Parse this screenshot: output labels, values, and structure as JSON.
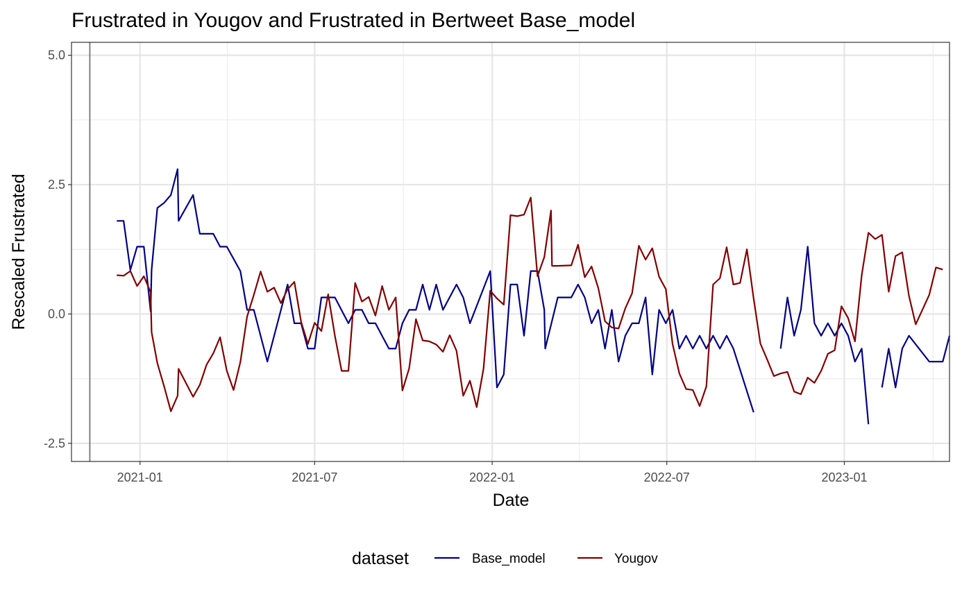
{
  "chart_data": {
    "type": "line",
    "title": "Frustrated  in Yougov and  Frustrated  in Bertweet  Base_model",
    "xlabel": "Date",
    "ylabel": "Rescaled  Frustrated",
    "x_ticks": [
      "2021-01",
      "2021-07",
      "2022-01",
      "2022-07",
      "2023-01"
    ],
    "y_ticks": [
      "-2.5",
      "0.0",
      "2.5",
      "5.0"
    ],
    "xlim": [
      "2020-10-22",
      "2023-04-20"
    ],
    "ylim": [
      -2.85,
      5.25
    ],
    "grid": true,
    "vline_x": "2020-11-10",
    "legend": {
      "title": "dataset",
      "position": "bottom"
    },
    "series": [
      {
        "name": "Base_model",
        "color": "#00007f",
        "points": [
          [
            "2020-12-08",
            1.8
          ],
          [
            "2020-12-15",
            1.8
          ],
          [
            "2020-12-22",
            0.85
          ],
          [
            "2020-12-29",
            1.3
          ],
          [
            "2021-01-05",
            1.3
          ],
          [
            "2021-01-12",
            0.05
          ],
          [
            "2021-01-13",
            0.85
          ],
          [
            "2021-01-19",
            2.05
          ],
          [
            "2021-01-26",
            2.15
          ],
          [
            "2021-02-02",
            2.3
          ],
          [
            "2021-02-09",
            2.8
          ],
          [
            "2021-02-10",
            1.8
          ],
          [
            "2021-02-25",
            2.3
          ],
          [
            "2021-03-04",
            1.55
          ],
          [
            "2021-03-18",
            1.55
          ],
          [
            "2021-03-25",
            1.3
          ],
          [
            "2021-04-01",
            1.3
          ],
          [
            "2021-04-15",
            0.83
          ],
          [
            "2021-04-22",
            0.08
          ],
          [
            "2021-04-29",
            0.08
          ],
          [
            "2021-05-13",
            -0.92
          ],
          [
            "2021-06-03",
            0.57
          ],
          [
            "2021-06-10",
            -0.18
          ],
          [
            "2021-06-17",
            -0.18
          ],
          [
            "2021-06-24",
            -0.67
          ],
          [
            "2021-07-01",
            -0.67
          ],
          [
            "2021-07-08",
            0.32
          ],
          [
            "2021-07-15",
            0.32
          ],
          [
            "2021-07-22",
            0.32
          ],
          [
            "2021-08-05",
            -0.18
          ],
          [
            "2021-08-12",
            0.08
          ],
          [
            "2021-08-19",
            0.08
          ],
          [
            "2021-08-26",
            -0.18
          ],
          [
            "2021-09-02",
            -0.18
          ],
          [
            "2021-09-16",
            -0.67
          ],
          [
            "2021-09-23",
            -0.67
          ],
          [
            "2021-09-30",
            -0.18
          ],
          [
            "2021-10-07",
            0.08
          ],
          [
            "2021-10-14",
            0.08
          ],
          [
            "2021-10-21",
            0.57
          ],
          [
            "2021-10-28",
            0.08
          ],
          [
            "2021-11-04",
            0.57
          ],
          [
            "2021-11-11",
            0.08
          ],
          [
            "2021-11-25",
            0.57
          ],
          [
            "2021-12-02",
            0.32
          ],
          [
            "2021-12-09",
            -0.18
          ],
          [
            "2021-12-30",
            0.83
          ],
          [
            "2022-01-06",
            -1.42
          ],
          [
            "2022-01-13",
            -1.17
          ],
          [
            "2022-01-20",
            0.57
          ],
          [
            "2022-01-27",
            0.57
          ],
          [
            "2022-02-03",
            -0.42
          ],
          [
            "2022-02-10",
            0.83
          ],
          [
            "2022-02-17",
            0.83
          ],
          [
            "2022-02-24",
            0.08
          ],
          [
            "2022-02-25",
            -0.67
          ],
          [
            "2022-03-10",
            0.32
          ],
          [
            "2022-03-24",
            0.32
          ],
          [
            "2022-03-31",
            0.57
          ],
          [
            "2022-04-07",
            0.32
          ],
          [
            "2022-04-14",
            -0.18
          ],
          [
            "2022-04-21",
            0.08
          ],
          [
            "2022-04-28",
            -0.67
          ],
          [
            "2022-05-05",
            0.08
          ],
          [
            "2022-05-12",
            -0.92
          ],
          [
            "2022-05-19",
            -0.42
          ],
          [
            "2022-05-26",
            -0.18
          ],
          [
            "2022-06-02",
            -0.18
          ],
          [
            "2022-06-09",
            0.32
          ],
          [
            "2022-06-16",
            -1.17
          ],
          [
            "2022-06-23",
            0.08
          ],
          [
            "2022-06-30",
            -0.18
          ],
          [
            "2022-07-07",
            0.08
          ],
          [
            "2022-07-14",
            -0.67
          ],
          [
            "2022-07-21",
            -0.42
          ],
          [
            "2022-07-28",
            -0.67
          ],
          [
            "2022-08-04",
            -0.42
          ],
          [
            "2022-08-11",
            -0.67
          ],
          [
            "2022-08-18",
            -0.42
          ],
          [
            "2022-08-25",
            -0.67
          ],
          [
            "2022-09-01",
            -0.42
          ],
          [
            "2022-09-08",
            -0.67
          ],
          [
            "2022-09-29",
            -1.9
          ],
          null,
          [
            "2022-10-27",
            -0.67
          ],
          [
            "2022-11-03",
            0.32
          ],
          [
            "2022-11-10",
            -0.42
          ],
          [
            "2022-11-17",
            0.08
          ],
          [
            "2022-11-24",
            1.3
          ],
          [
            "2022-12-01",
            -0.18
          ],
          [
            "2022-12-08",
            -0.42
          ],
          [
            "2022-12-15",
            -0.18
          ],
          [
            "2022-12-22",
            -0.42
          ],
          [
            "2022-12-29",
            -0.18
          ],
          [
            "2023-01-05",
            -0.42
          ],
          [
            "2023-01-12",
            -0.92
          ],
          [
            "2023-01-19",
            -0.67
          ],
          [
            "2023-01-26",
            -2.13
          ],
          null,
          [
            "2023-02-09",
            -1.42
          ],
          [
            "2023-02-16",
            -0.67
          ],
          [
            "2023-02-23",
            -1.42
          ],
          [
            "2023-03-02",
            -0.67
          ],
          [
            "2023-03-09",
            -0.42
          ],
          [
            "2023-03-30",
            -0.92
          ],
          [
            "2023-04-06",
            -0.92
          ],
          [
            "2023-04-13",
            -0.92
          ],
          [
            "2023-04-20",
            -0.42
          ]
        ]
      },
      {
        "name": "Yougov",
        "color": "#7f0000",
        "points": [
          [
            "2020-12-08",
            0.75
          ],
          [
            "2020-12-15",
            0.74
          ],
          [
            "2020-12-22",
            0.83
          ],
          [
            "2020-12-29",
            0.54
          ],
          [
            "2021-01-05",
            0.73
          ],
          [
            "2021-01-12",
            0.42
          ],
          [
            "2021-01-13",
            -0.35
          ],
          [
            "2021-01-19",
            -0.95
          ],
          [
            "2021-01-26",
            -1.4
          ],
          [
            "2021-02-02",
            -1.88
          ],
          [
            "2021-02-09",
            -1.58
          ],
          [
            "2021-02-10",
            -1.06
          ],
          [
            "2021-02-25",
            -1.6
          ],
          [
            "2021-03-04",
            -1.37
          ],
          [
            "2021-03-11",
            -0.98
          ],
          [
            "2021-03-18",
            -0.76
          ],
          [
            "2021-03-25",
            -0.45
          ],
          [
            "2021-04-01",
            -1.1
          ],
          [
            "2021-04-08",
            -1.47
          ],
          [
            "2021-04-15",
            -0.93
          ],
          [
            "2021-04-22",
            -0.05
          ],
          [
            "2021-04-29",
            0.37
          ],
          [
            "2021-05-06",
            0.82
          ],
          [
            "2021-05-13",
            0.43
          ],
          [
            "2021-05-20",
            0.51
          ],
          [
            "2021-05-27",
            0.21
          ],
          [
            "2021-06-03",
            0.48
          ],
          [
            "2021-06-10",
            0.62
          ],
          [
            "2021-06-17",
            -0.15
          ],
          [
            "2021-06-24",
            -0.58
          ],
          [
            "2021-07-01",
            -0.17
          ],
          [
            "2021-07-08",
            -0.33
          ],
          [
            "2021-07-15",
            0.38
          ],
          [
            "2021-07-22",
            -0.42
          ],
          [
            "2021-07-29",
            -1.1
          ],
          [
            "2021-08-05",
            -1.1
          ],
          [
            "2021-08-12",
            0.6
          ],
          [
            "2021-08-19",
            0.24
          ],
          [
            "2021-08-26",
            0.33
          ],
          [
            "2021-09-02",
            -0.03
          ],
          [
            "2021-09-09",
            0.54
          ],
          [
            "2021-09-16",
            0.08
          ],
          [
            "2021-09-23",
            0.32
          ],
          [
            "2021-09-30",
            -1.48
          ],
          [
            "2021-10-07",
            -1.05
          ],
          [
            "2021-10-14",
            -0.1
          ],
          [
            "2021-10-21",
            -0.51
          ],
          [
            "2021-10-28",
            -0.53
          ],
          [
            "2021-11-04",
            -0.59
          ],
          [
            "2021-11-11",
            -0.73
          ],
          [
            "2021-11-18",
            -0.41
          ],
          [
            "2021-11-25",
            -0.71
          ],
          [
            "2021-12-02",
            -1.58
          ],
          [
            "2021-12-09",
            -1.29
          ],
          [
            "2021-12-16",
            -1.8
          ],
          [
            "2021-12-23",
            -1.06
          ],
          [
            "2021-12-30",
            0.45
          ],
          [
            "2022-01-06",
            0.3
          ],
          [
            "2022-01-13",
            0.18
          ],
          [
            "2022-01-20",
            1.91
          ],
          [
            "2022-01-27",
            1.89
          ],
          [
            "2022-02-03",
            1.92
          ],
          [
            "2022-02-10",
            2.25
          ],
          [
            "2022-02-17",
            0.73
          ],
          [
            "2022-02-24",
            1.1
          ],
          [
            "2022-03-03",
            2.0
          ],
          [
            "2022-03-04",
            0.93
          ],
          [
            "2022-03-10",
            0.93
          ],
          [
            "2022-03-24",
            0.94
          ],
          [
            "2022-03-31",
            1.34
          ],
          [
            "2022-04-07",
            0.71
          ],
          [
            "2022-04-14",
            0.92
          ],
          [
            "2022-04-21",
            0.5
          ],
          [
            "2022-04-28",
            -0.14
          ],
          [
            "2022-05-05",
            -0.26
          ],
          [
            "2022-05-12",
            -0.28
          ],
          [
            "2022-05-19",
            0.11
          ],
          [
            "2022-05-26",
            0.4
          ],
          [
            "2022-06-02",
            1.32
          ],
          [
            "2022-06-09",
            1.05
          ],
          [
            "2022-06-16",
            1.27
          ],
          [
            "2022-06-23",
            0.72
          ],
          [
            "2022-06-30",
            0.48
          ],
          [
            "2022-07-07",
            -0.58
          ],
          [
            "2022-07-14",
            -1.15
          ],
          [
            "2022-07-21",
            -1.45
          ],
          [
            "2022-07-28",
            -1.47
          ],
          [
            "2022-08-04",
            -1.78
          ],
          [
            "2022-08-11",
            -1.4
          ],
          [
            "2022-08-18",
            0.57
          ],
          [
            "2022-08-25",
            0.69
          ],
          [
            "2022-09-01",
            1.29
          ],
          [
            "2022-09-08",
            0.57
          ],
          [
            "2022-09-15",
            0.6
          ],
          [
            "2022-09-22",
            1.25
          ],
          [
            "2022-09-29",
            0.3
          ],
          [
            "2022-10-06",
            -0.57
          ],
          [
            "2022-10-13",
            -0.88
          ],
          [
            "2022-10-20",
            -1.2
          ],
          [
            "2022-10-27",
            -1.15
          ],
          [
            "2022-11-03",
            -1.12
          ],
          [
            "2022-11-10",
            -1.5
          ],
          [
            "2022-11-17",
            -1.55
          ],
          [
            "2022-11-24",
            -1.23
          ],
          [
            "2022-12-01",
            -1.33
          ],
          [
            "2022-12-08",
            -1.1
          ],
          [
            "2022-12-15",
            -0.77
          ],
          [
            "2022-12-22",
            -0.7
          ],
          [
            "2022-12-29",
            0.15
          ],
          [
            "2023-01-05",
            -0.08
          ],
          [
            "2023-01-12",
            -0.53
          ],
          [
            "2023-01-19",
            0.75
          ],
          [
            "2023-01-26",
            1.57
          ],
          [
            "2023-02-02",
            1.45
          ],
          [
            "2023-02-09",
            1.53
          ],
          [
            "2023-02-16",
            0.43
          ],
          [
            "2023-02-23",
            1.12
          ],
          [
            "2023-03-02",
            1.19
          ],
          [
            "2023-03-09",
            0.35
          ],
          [
            "2023-03-16",
            -0.2
          ],
          [
            "2023-03-30",
            0.37
          ],
          [
            "2023-04-06",
            0.9
          ],
          [
            "2023-04-13",
            0.86
          ]
        ]
      }
    ]
  }
}
